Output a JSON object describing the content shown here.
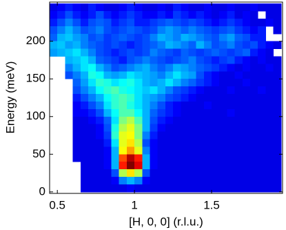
{
  "chart_data": {
    "type": "heatmap",
    "x_label": "[H, 0, 0] (r.l.u.)",
    "y_label": "Energy (meV)",
    "xlim": [
      0.45,
      1.96
    ],
    "ylim": [
      -2,
      252
    ],
    "xticks": [
      0.5,
      1,
      1.5
    ],
    "yticks": [
      0,
      50,
      100,
      150,
      200
    ],
    "colormap": "jet",
    "zlim": [
      0,
      1
    ],
    "x": [
      0.475,
      0.525,
      0.575,
      0.625,
      0.675,
      0.725,
      0.775,
      0.825,
      0.875,
      0.925,
      0.975,
      1.025,
      1.075,
      1.125,
      1.175,
      1.225,
      1.275,
      1.325,
      1.375,
      1.425,
      1.475,
      1.525,
      1.575,
      1.625,
      1.675,
      1.725,
      1.775,
      1.825,
      1.875,
      1.925
    ],
    "y": [
      245,
      235,
      225,
      215,
      205,
      195,
      185,
      175,
      165,
      155,
      145,
      135,
      125,
      115,
      105,
      95,
      85,
      75,
      65,
      55,
      45,
      35,
      25,
      15,
      5
    ],
    "z": [
      [
        0.1,
        0.12,
        0.15,
        0.12,
        0.1,
        0.15,
        0.12,
        0.1,
        0.1,
        0.12,
        0.15,
        0.12,
        0.1,
        0.1,
        0.12,
        0.1,
        0.15,
        0.12,
        0.1,
        0.1,
        0.12,
        0.1,
        0.1,
        0.12,
        0.1,
        0.1,
        0.12,
        0.1,
        0.1,
        0.1
      ],
      [
        0.12,
        0.15,
        0.2,
        0.15,
        0.12,
        0.15,
        0.2,
        0.15,
        0.12,
        0.15,
        0.18,
        0.15,
        0.12,
        0.12,
        0.15,
        0.12,
        0.18,
        0.15,
        0.12,
        0.15,
        0.12,
        0.1,
        0.12,
        0.15,
        0.1,
        0.12,
        0.1,
        null,
        0.1,
        0.1
      ],
      [
        0.15,
        0.2,
        0.25,
        0.2,
        0.15,
        0.2,
        0.22,
        0.2,
        0.15,
        0.18,
        0.2,
        0.15,
        0.15,
        0.18,
        0.2,
        0.22,
        0.2,
        0.18,
        0.2,
        0.18,
        0.15,
        0.12,
        0.15,
        0.18,
        0.15,
        0.12,
        0.1,
        0.1,
        0.12,
        0.1
      ],
      [
        0.2,
        0.25,
        0.3,
        0.25,
        0.2,
        0.22,
        0.25,
        0.2,
        0.18,
        0.2,
        0.22,
        0.2,
        0.18,
        0.2,
        0.25,
        0.28,
        0.25,
        0.22,
        0.25,
        0.22,
        0.2,
        0.18,
        0.2,
        0.22,
        0.18,
        0.15,
        0.12,
        0.15,
        null,
        0.1
      ],
      [
        0.22,
        0.3,
        0.32,
        0.28,
        0.25,
        0.2,
        0.22,
        0.18,
        0.2,
        0.22,
        0.2,
        0.18,
        0.2,
        0.25,
        0.3,
        0.28,
        0.25,
        0.3,
        0.28,
        0.25,
        0.22,
        0.2,
        0.25,
        0.28,
        0.22,
        0.2,
        0.15,
        0.15,
        null,
        null
      ],
      [
        0.3,
        0.32,
        0.28,
        0.3,
        0.25,
        0.22,
        0.2,
        0.18,
        0.2,
        0.18,
        0.15,
        0.18,
        0.2,
        0.22,
        0.25,
        0.3,
        0.28,
        0.25,
        0.22,
        0.3,
        0.25,
        0.2,
        0.22,
        0.25,
        0.2,
        0.18,
        0.2,
        0.15,
        0.12,
        0.1
      ],
      [
        0.28,
        0.3,
        0.32,
        0.35,
        0.3,
        0.25,
        0.2,
        0.18,
        0.15,
        0.18,
        0.2,
        0.18,
        0.2,
        0.25,
        0.22,
        0.2,
        0.18,
        0.22,
        0.2,
        0.18,
        0.2,
        0.22,
        0.2,
        0.18,
        0.2,
        0.22,
        0.15,
        0.12,
        0.1,
        null
      ],
      [
        null,
        null,
        0.3,
        0.32,
        0.35,
        0.3,
        0.22,
        0.2,
        0.18,
        0.15,
        0.2,
        0.22,
        0.25,
        0.22,
        0.2,
        0.18,
        0.2,
        0.22,
        0.25,
        0.2,
        0.18,
        0.15,
        0.18,
        0.2,
        0.15,
        0.12,
        0.1,
        0.12,
        0.1,
        0.1
      ],
      [
        null,
        null,
        0.25,
        0.3,
        0.35,
        0.38,
        0.3,
        0.25,
        0.2,
        0.22,
        0.25,
        0.28,
        0.3,
        0.25,
        0.22,
        0.25,
        0.3,
        0.28,
        0.25,
        0.22,
        0.2,
        0.18,
        0.15,
        0.12,
        0.1,
        0.12,
        0.1,
        0.1,
        0.12,
        0.1
      ],
      [
        null,
        null,
        0.2,
        0.25,
        0.3,
        0.4,
        0.38,
        0.3,
        0.28,
        0.3,
        0.35,
        0.32,
        0.3,
        0.28,
        0.25,
        0.3,
        0.35,
        0.3,
        0.28,
        0.2,
        0.15,
        0.12,
        0.1,
        0.1,
        0.12,
        0.1,
        0.1,
        0.1,
        0.1,
        0.1
      ],
      [
        null,
        null,
        null,
        0.22,
        0.28,
        0.35,
        0.42,
        0.4,
        0.35,
        0.38,
        0.4,
        0.35,
        0.3,
        0.28,
        0.3,
        0.35,
        0.3,
        0.25,
        0.22,
        0.18,
        0.15,
        0.12,
        0.1,
        0.1,
        0.1,
        0.12,
        0.1,
        0.1,
        0.1,
        0.1
      ],
      [
        null,
        null,
        null,
        0.2,
        0.25,
        0.3,
        0.38,
        0.42,
        0.45,
        0.4,
        0.38,
        0.35,
        0.32,
        0.35,
        0.3,
        0.25,
        0.2,
        0.18,
        0.15,
        0.12,
        0.1,
        0.1,
        0.1,
        0.12,
        0.1,
        0.1,
        0.1,
        0.12,
        0.1,
        0.1
      ],
      [
        null,
        null,
        null,
        0.15,
        0.2,
        0.25,
        0.3,
        0.38,
        0.42,
        0.45,
        0.42,
        0.35,
        0.3,
        0.28,
        0.25,
        0.2,
        0.18,
        0.15,
        0.12,
        0.1,
        0.1,
        0.1,
        0.1,
        0.1,
        0.1,
        0.1,
        0.1,
        0.1,
        0.1,
        0.1
      ],
      [
        null,
        null,
        null,
        0.12,
        0.15,
        0.2,
        0.25,
        0.35,
        0.42,
        0.45,
        0.4,
        0.35,
        0.3,
        0.25,
        0.2,
        0.15,
        0.12,
        0.1,
        0.1,
        0.1,
        0.12,
        0.1,
        0.1,
        0.1,
        0.1,
        0.1,
        0.1,
        0.1,
        0.1,
        0.1
      ],
      [
        null,
        null,
        null,
        0.12,
        0.12,
        0.15,
        0.2,
        0.3,
        0.38,
        0.45,
        0.45,
        0.38,
        0.3,
        0.22,
        0.18,
        0.15,
        0.12,
        0.1,
        0.1,
        0.1,
        0.1,
        0.1,
        0.1,
        0.12,
        0.1,
        0.1,
        0.1,
        0.1,
        0.1,
        0.1
      ],
      [
        null,
        null,
        null,
        0.1,
        0.1,
        0.12,
        0.15,
        0.22,
        0.35,
        0.5,
        0.55,
        0.45,
        0.3,
        0.2,
        0.15,
        0.12,
        0.1,
        0.1,
        0.1,
        0.1,
        0.1,
        0.1,
        0.1,
        0.1,
        0.1,
        0.1,
        0.1,
        0.1,
        0.1,
        0.1
      ],
      [
        null,
        null,
        null,
        0.1,
        0.1,
        0.1,
        0.12,
        0.2,
        0.4,
        0.55,
        0.6,
        0.5,
        0.3,
        0.18,
        0.12,
        0.1,
        0.1,
        0.1,
        0.1,
        0.1,
        0.1,
        0.1,
        0.1,
        0.1,
        0.1,
        0.1,
        0.1,
        0.1,
        0.1,
        0.1
      ],
      [
        null,
        null,
        null,
        0.1,
        0.1,
        0.1,
        0.12,
        0.18,
        0.42,
        0.6,
        0.62,
        0.5,
        0.25,
        0.15,
        0.1,
        0.1,
        0.1,
        0.1,
        0.1,
        0.1,
        0.1,
        0.1,
        0.1,
        0.1,
        0.1,
        0.1,
        0.1,
        0.1,
        0.1,
        0.1
      ],
      [
        null,
        null,
        null,
        0.1,
        0.1,
        0.1,
        0.1,
        0.15,
        0.35,
        0.6,
        0.65,
        0.55,
        0.2,
        0.12,
        0.1,
        0.1,
        0.1,
        0.1,
        0.1,
        0.1,
        0.1,
        0.1,
        0.1,
        0.1,
        0.1,
        0.1,
        0.1,
        0.1,
        0.1,
        0.1
      ],
      [
        null,
        null,
        null,
        0.1,
        0.1,
        0.1,
        0.1,
        0.12,
        0.3,
        0.62,
        0.72,
        0.6,
        0.25,
        0.12,
        0.1,
        0.1,
        0.1,
        0.1,
        0.1,
        0.1,
        0.1,
        0.1,
        0.1,
        0.1,
        0.1,
        0.1,
        0.1,
        0.1,
        0.1,
        0.1
      ],
      [
        null,
        null,
        null,
        0.1,
        0.1,
        0.1,
        0.1,
        0.12,
        0.3,
        0.8,
        0.95,
        0.85,
        0.3,
        0.12,
        0.1,
        0.1,
        0.1,
        0.1,
        0.1,
        0.1,
        0.1,
        0.1,
        0.1,
        0.1,
        0.1,
        0.1,
        0.1,
        0.1,
        0.1,
        0.1
      ],
      [
        null,
        null,
        null,
        null,
        0.1,
        0.1,
        0.1,
        0.12,
        0.3,
        0.85,
        1.0,
        0.9,
        0.3,
        0.12,
        0.1,
        0.1,
        0.1,
        0.1,
        0.1,
        0.1,
        0.1,
        0.1,
        0.1,
        0.1,
        0.1,
        0.1,
        0.1,
        0.1,
        0.1,
        0.1
      ],
      [
        null,
        null,
        null,
        null,
        0.1,
        0.1,
        0.1,
        0.1,
        0.2,
        0.55,
        0.65,
        0.55,
        0.2,
        0.1,
        0.1,
        0.1,
        0.1,
        0.1,
        0.1,
        0.1,
        0.1,
        0.1,
        0.1,
        0.1,
        0.1,
        0.1,
        0.1,
        0.1,
        0.1,
        0.1
      ],
      [
        null,
        null,
        null,
        null,
        0.1,
        0.1,
        0.1,
        0.1,
        0.12,
        0.25,
        0.3,
        0.25,
        0.12,
        0.1,
        0.1,
        0.1,
        0.1,
        0.1,
        0.1,
        0.1,
        0.1,
        0.1,
        0.1,
        0.1,
        0.1,
        0.1,
        0.1,
        0.1,
        0.1,
        0.1
      ],
      [
        null,
        null,
        null,
        null,
        0.1,
        0.1,
        0.1,
        0.1,
        0.1,
        0.1,
        0.12,
        0.1,
        0.1,
        0.1,
        0.1,
        0.1,
        0.1,
        0.1,
        0.1,
        0.1,
        0.1,
        0.1,
        0.1,
        0.1,
        0.1,
        0.1,
        0.1,
        0.1,
        0.1,
        0.1
      ]
    ]
  }
}
